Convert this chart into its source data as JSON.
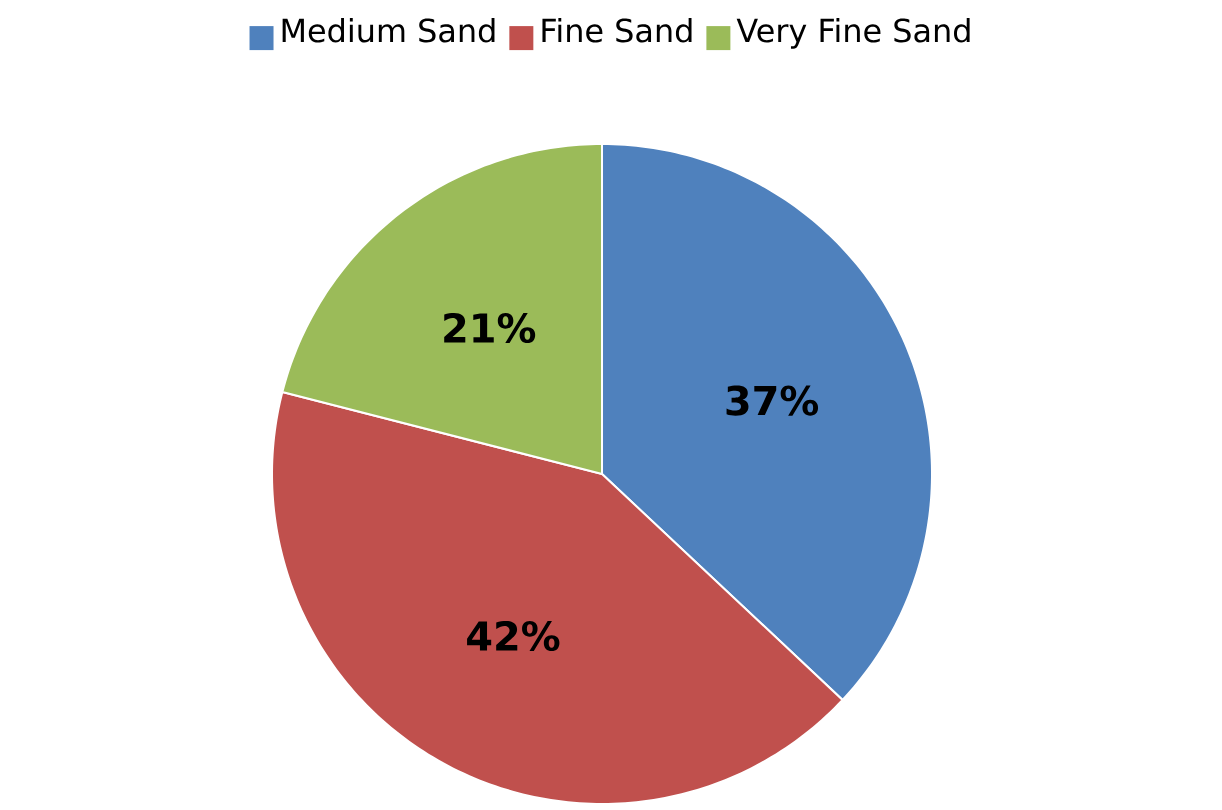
{
  "chart_data": {
    "type": "pie",
    "categories": [
      "Medium Sand",
      "Fine Sand",
      "Very Fine Sand"
    ],
    "values": [
      37,
      42,
      21
    ],
    "value_labels": [
      "37%",
      "42%",
      "21%"
    ],
    "colors": [
      "#4f81bd",
      "#c0504d",
      "#9bbb59"
    ],
    "legend": "top"
  }
}
